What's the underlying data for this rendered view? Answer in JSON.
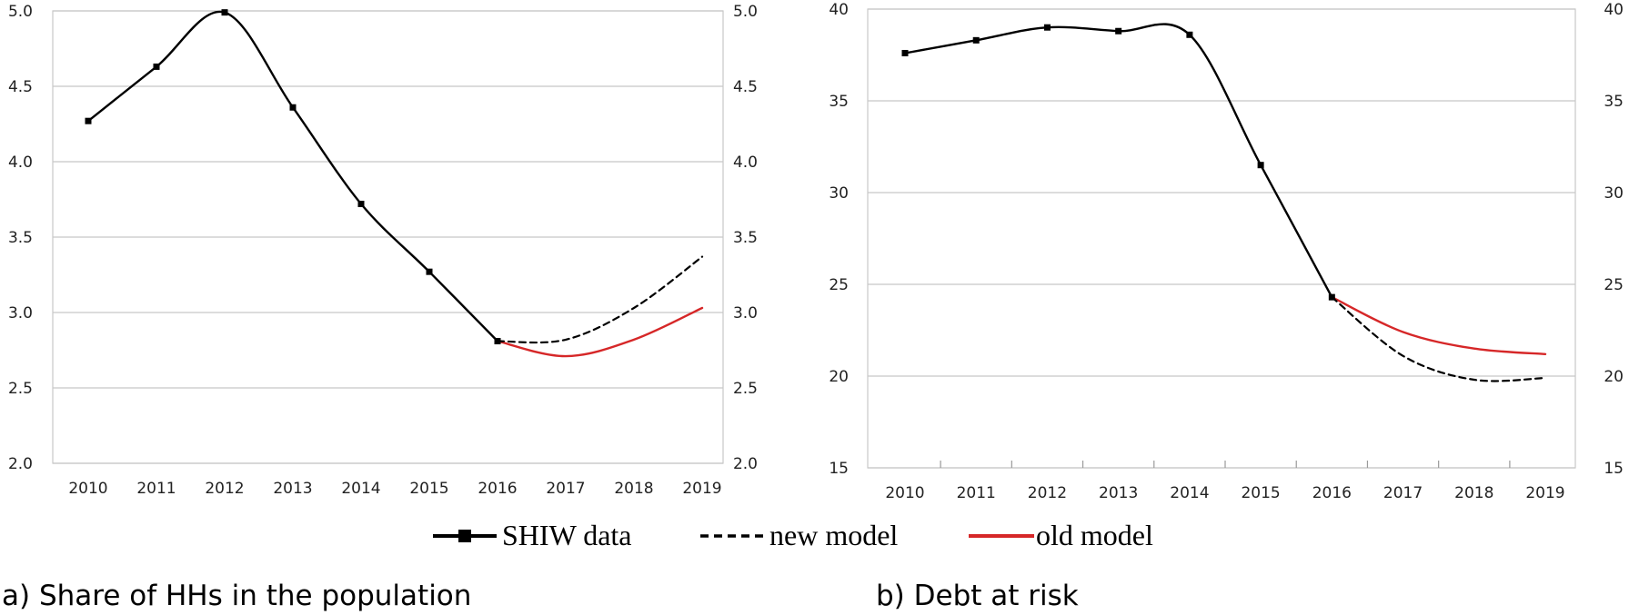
{
  "legend": {
    "items": [
      {
        "label": "SHIW data",
        "color": "#000000",
        "style": "solid-marker"
      },
      {
        "label": "new model",
        "color": "#000000",
        "style": "dashed"
      },
      {
        "label": "old model",
        "color": "#d62728",
        "style": "solid"
      }
    ]
  },
  "chart_data": [
    {
      "type": "line",
      "caption": "a) Share of HHs in the population",
      "x": [
        "2010",
        "2011",
        "2012",
        "2013",
        "2014",
        "2015",
        "2016",
        "2017",
        "2018",
        "2019"
      ],
      "ylim": [
        2.0,
        5.0
      ],
      "yticks": [
        "2.0",
        "2.5",
        "3.0",
        "3.5",
        "4.0",
        "4.5",
        "5.0"
      ],
      "y2ticks": [
        "2.0",
        "2.5",
        "3.0",
        "3.5",
        "4.0",
        "4.5",
        "5.0"
      ],
      "grid": true,
      "series": [
        {
          "name": "SHIW data",
          "x": [
            "2010",
            "2011",
            "2012",
            "2013",
            "2014",
            "2015",
            "2016"
          ],
          "values": [
            4.27,
            4.63,
            4.99,
            4.36,
            3.72,
            3.27,
            2.81
          ]
        },
        {
          "name": "new model",
          "x": [
            "2016",
            "2017",
            "2018",
            "2019"
          ],
          "values": [
            2.81,
            2.82,
            3.03,
            3.37
          ]
        },
        {
          "name": "old model",
          "x": [
            "2016",
            "2017",
            "2018",
            "2019"
          ],
          "values": [
            2.81,
            2.71,
            2.82,
            3.03
          ]
        }
      ]
    },
    {
      "type": "line",
      "caption": "b) Debt at risk",
      "x": [
        "2010",
        "2011",
        "2012",
        "2013",
        "2014",
        "2015",
        "2016",
        "2017",
        "2018",
        "2019"
      ],
      "ylim": [
        15,
        40
      ],
      "yticks": [
        "15",
        "20",
        "25",
        "30",
        "35",
        "40"
      ],
      "y2ticks": [
        "15",
        "20",
        "25",
        "30",
        "35",
        "40"
      ],
      "grid": true,
      "series": [
        {
          "name": "SHIW data",
          "x": [
            "2010",
            "2011",
            "2012",
            "2013",
            "2014",
            "2015",
            "2016"
          ],
          "values": [
            37.6,
            38.3,
            39.0,
            38.8,
            38.6,
            31.5,
            24.3
          ]
        },
        {
          "name": "new model",
          "x": [
            "2016",
            "2017",
            "2018",
            "2019"
          ],
          "values": [
            24.3,
            21.1,
            19.8,
            19.9
          ]
        },
        {
          "name": "old model",
          "x": [
            "2016",
            "2017",
            "2018",
            "2019"
          ],
          "values": [
            24.3,
            22.4,
            21.5,
            21.2
          ]
        }
      ]
    }
  ]
}
